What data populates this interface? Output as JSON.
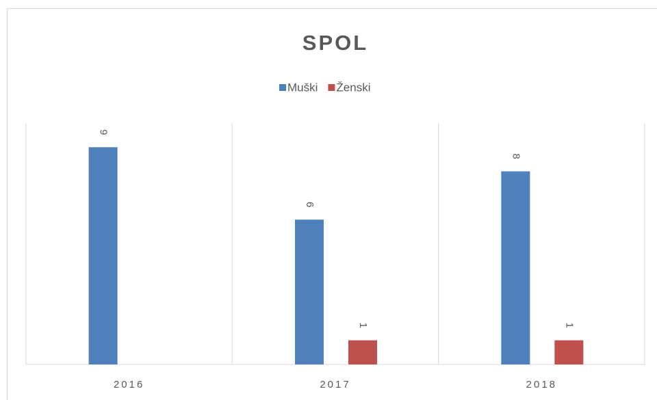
{
  "chart_data": {
    "type": "bar",
    "title": "SPOL",
    "categories": [
      "2016",
      "2017",
      "2018"
    ],
    "series": [
      {
        "name": "Muški",
        "color": "#4f81bd",
        "values": [
          9,
          6,
          8
        ]
      },
      {
        "name": "Ženski",
        "color": "#c0504d",
        "values": [
          null,
          1,
          1
        ]
      }
    ],
    "ylim": [
      0,
      10
    ],
    "legend": "top"
  }
}
